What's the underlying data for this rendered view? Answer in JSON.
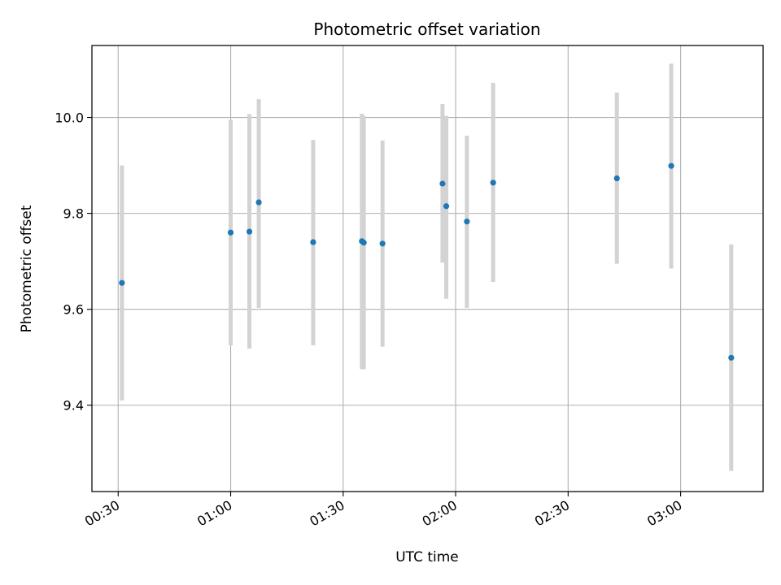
{
  "chart_data": {
    "type": "scatter",
    "title": "Photometric offset variation",
    "xlabel": "UTC time",
    "ylabel": "Photometric offset",
    "xlim": [
      "00:23",
      "03:22"
    ],
    "ylim": [
      9.22,
      10.15
    ],
    "x_ticks": [
      "00:30",
      "01:00",
      "01:30",
      "02:00",
      "02:30",
      "03:00"
    ],
    "y_ticks": [
      9.4,
      9.6,
      9.8,
      10.0
    ],
    "y_tick_labels": [
      "9.4",
      "9.6",
      "9.8",
      "10.0"
    ],
    "grid": true,
    "colors": {
      "points": "#1f77b4",
      "errorbars": "#d3d3d3",
      "grid": "#b0b0b0"
    },
    "points": [
      {
        "x": "00:31",
        "y": 9.655,
        "ylow": 9.41,
        "yhigh": 9.9
      },
      {
        "x": "01:00",
        "y": 9.76,
        "ylow": 9.525,
        "yhigh": 9.995
      },
      {
        "x": "01:05",
        "y": 9.762,
        "ylow": 9.518,
        "yhigh": 10.007
      },
      {
        "x": "01:07.5",
        "y": 9.823,
        "ylow": 9.603,
        "yhigh": 10.038
      },
      {
        "x": "01:22",
        "y": 9.74,
        "ylow": 9.525,
        "yhigh": 9.953
      },
      {
        "x": "01:35",
        "y": 9.742,
        "ylow": 9.475,
        "yhigh": 10.008
      },
      {
        "x": "01:35.5",
        "y": 9.739,
        "ylow": 9.475,
        "yhigh": 10.003
      },
      {
        "x": "01:40.5",
        "y": 9.737,
        "ylow": 9.522,
        "yhigh": 9.952
      },
      {
        "x": "01:56.5",
        "y": 9.862,
        "ylow": 9.697,
        "yhigh": 10.028
      },
      {
        "x": "01:57.5",
        "y": 9.815,
        "ylow": 9.622,
        "yhigh": 10.003
      },
      {
        "x": "02:03",
        "y": 9.783,
        "ylow": 9.603,
        "yhigh": 9.962
      },
      {
        "x": "02:10",
        "y": 9.864,
        "ylow": 9.657,
        "yhigh": 10.072
      },
      {
        "x": "02:43",
        "y": 9.873,
        "ylow": 9.695,
        "yhigh": 10.052
      },
      {
        "x": "02:57.5",
        "y": 9.899,
        "ylow": 9.685,
        "yhigh": 10.112
      },
      {
        "x": "03:13.5",
        "y": 9.499,
        "ylow": 9.263,
        "yhigh": 9.735
      }
    ]
  }
}
